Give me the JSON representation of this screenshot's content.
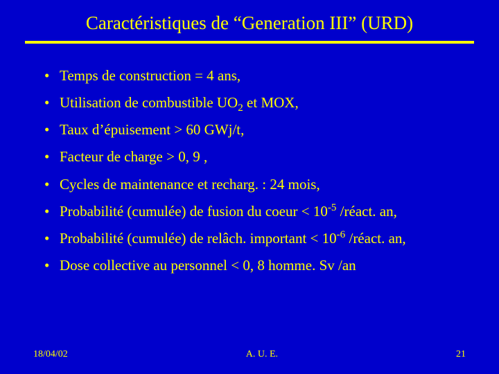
{
  "background_color": "#0000cc",
  "text_color": "#ffff00",
  "title": "Caractéristiques de  “Generation III”  (URD)",
  "bullets": [
    {
      "pre": "Temps de construction = 4 ans,",
      "sub": "",
      "mid": "",
      "sup": "",
      "post": ""
    },
    {
      "pre": "Utilisation de combustible UO",
      "sub": "2",
      "mid": " et MOX,",
      "sup": "",
      "post": ""
    },
    {
      "pre": "Taux d’épuisement > 60 GWj/t,",
      "sub": "",
      "mid": "",
      "sup": "",
      "post": ""
    },
    {
      "pre": "Facteur de charge > 0, 9 ,",
      "sub": "",
      "mid": "",
      "sup": "",
      "post": ""
    },
    {
      "pre": "Cycles de maintenance et recharg. : 24 mois,",
      "sub": "",
      "mid": "",
      "sup": "",
      "post": ""
    },
    {
      "pre": "Probabilité (cumulée) de fusion du coeur <  10",
      "sub": "",
      "mid": "",
      "sup": "-5",
      "post": "  /réact. an,"
    },
    {
      "pre": "Probabilité (cumulée) de relâch. important  < 10",
      "sub": "",
      "mid": "",
      "sup": "-6",
      "post": "  /réact. an,"
    },
    {
      "pre": "Dose collective au personnel < 0, 8 homme. Sv /an",
      "sub": "",
      "mid": "",
      "sup": "",
      "post": ""
    }
  ],
  "footer": {
    "date": "18/04/02",
    "center": "A. U. E.",
    "page": "21"
  }
}
